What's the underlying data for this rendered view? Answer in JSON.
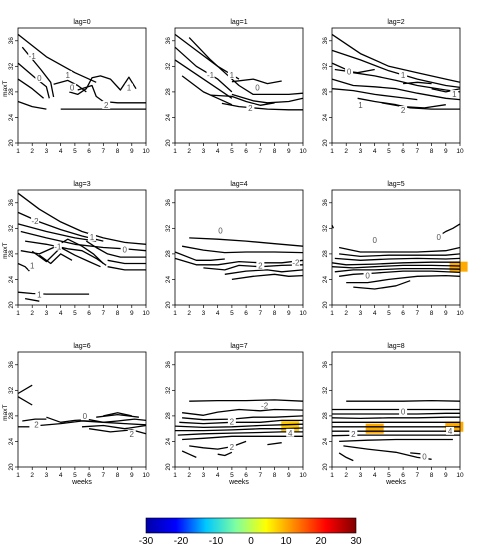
{
  "chart_data": {
    "type": "contour",
    "shared": {
      "xlabel": "weeks",
      "ylabel": "maxT",
      "x_ticks": [
        "1",
        "2",
        "3",
        "4",
        "5",
        "6",
        "7",
        "8",
        "9",
        "10"
      ],
      "y_ticks": [
        "20",
        "24",
        "28",
        "32",
        "36"
      ],
      "xlim": [
        1,
        10
      ],
      "ylim": [
        20,
        38
      ]
    },
    "panels": [
      {
        "title": "lag=0",
        "contour_labels": [
          {
            "text": "-1",
            "x": 2.0,
            "y": 33.5
          },
          {
            "text": "0",
            "x": 2.5,
            "y": 30.0
          },
          {
            "text": "1",
            "x": 4.5,
            "y": 30.5
          },
          {
            "text": "0",
            "x": 4.8,
            "y": 28.5
          },
          {
            "text": "1",
            "x": 8.8,
            "y": 28.5
          },
          {
            "text": "2",
            "x": 7.2,
            "y": 25.8
          }
        ]
      },
      {
        "title": "lag=1",
        "contour_labels": [
          {
            "text": "-1",
            "x": 3.5,
            "y": 30.5
          },
          {
            "text": "1",
            "x": 5.0,
            "y": 30.5
          },
          {
            "text": "0",
            "x": 6.8,
            "y": 28.5
          },
          {
            "text": "2",
            "x": 6.3,
            "y": 25.3
          }
        ]
      },
      {
        "title": "lag=2",
        "contour_labels": [
          {
            "text": "0",
            "x": 2.2,
            "y": 31.0
          },
          {
            "text": "1",
            "x": 6.0,
            "y": 30.5
          },
          {
            "text": "1",
            "x": 3.0,
            "y": 25.8
          },
          {
            "text": "2",
            "x": 6.0,
            "y": 25.0
          },
          {
            "text": "1",
            "x": 9.6,
            "y": 27.5
          }
        ]
      },
      {
        "title": "lag=3",
        "contour_labels": [
          {
            "text": "-2",
            "x": 2.2,
            "y": 33.0
          },
          {
            "text": "-1",
            "x": 3.8,
            "y": 29.0
          },
          {
            "text": "1",
            "x": 6.2,
            "y": 30.5
          },
          {
            "text": "0",
            "x": 8.5,
            "y": 28.5
          },
          {
            "text": "1",
            "x": 2.0,
            "y": 26.0
          },
          {
            "text": "1",
            "x": 2.5,
            "y": 21.5
          }
        ]
      },
      {
        "title": "lag=4",
        "contour_labels": [
          {
            "text": "0",
            "x": 4.2,
            "y": 31.5
          },
          {
            "text": "2",
            "x": 7.0,
            "y": 26.0
          },
          {
            "text": "-2",
            "x": 9.5,
            "y": 26.5
          }
        ]
      },
      {
        "title": "lag=5",
        "contour_labels": [
          {
            "text": "0",
            "x": 4.0,
            "y": 30.0
          },
          {
            "text": "0",
            "x": 8.5,
            "y": 30.5
          },
          {
            "text": "0",
            "x": 3.5,
            "y": 24.5
          }
        ],
        "hotspots": [
          {
            "x": 9.9,
            "y": 26.0,
            "value": 10
          }
        ]
      },
      {
        "title": "lag=6",
        "contour_labels": [
          {
            "text": "2",
            "x": 2.3,
            "y": 26.5
          },
          {
            "text": "0",
            "x": 5.7,
            "y": 27.8
          },
          {
            "text": "2",
            "x": 9.0,
            "y": 25.0
          }
        ]
      },
      {
        "title": "lag=7",
        "contour_labels": [
          {
            "text": "-2",
            "x": 7.3,
            "y": 29.5
          },
          {
            "text": "2",
            "x": 5.0,
            "y": 27.0
          },
          {
            "text": "2",
            "x": 5.0,
            "y": 23.0
          },
          {
            "text": "4",
            "x": 9.1,
            "y": 25.2
          }
        ],
        "hotspots": [
          {
            "x": 9.1,
            "y": 26.4,
            "value": 8
          }
        ]
      },
      {
        "title": "lag=8",
        "contour_labels": [
          {
            "text": "0",
            "x": 6.0,
            "y": 28.5
          },
          {
            "text": "2",
            "x": 2.5,
            "y": 25.0
          },
          {
            "text": "0",
            "x": 7.5,
            "y": 21.5
          },
          {
            "text": "4",
            "x": 9.3,
            "y": 25.5
          }
        ],
        "hotspots": [
          {
            "x": 4.0,
            "y": 26.0,
            "value": 10
          },
          {
            "x": 9.6,
            "y": 26.3,
            "value": 10
          }
        ]
      }
    ],
    "colorbar": {
      "ticks": [
        "-30",
        "-20",
        "-10",
        "0",
        "10",
        "20",
        "30"
      ],
      "range": [
        -30,
        30
      ],
      "colors": [
        "#0000a8",
        "#0000ff",
        "#00c8ff",
        "#7fffa0",
        "#ffff00",
        "#ff8000",
        "#ff0000",
        "#800000"
      ]
    }
  }
}
